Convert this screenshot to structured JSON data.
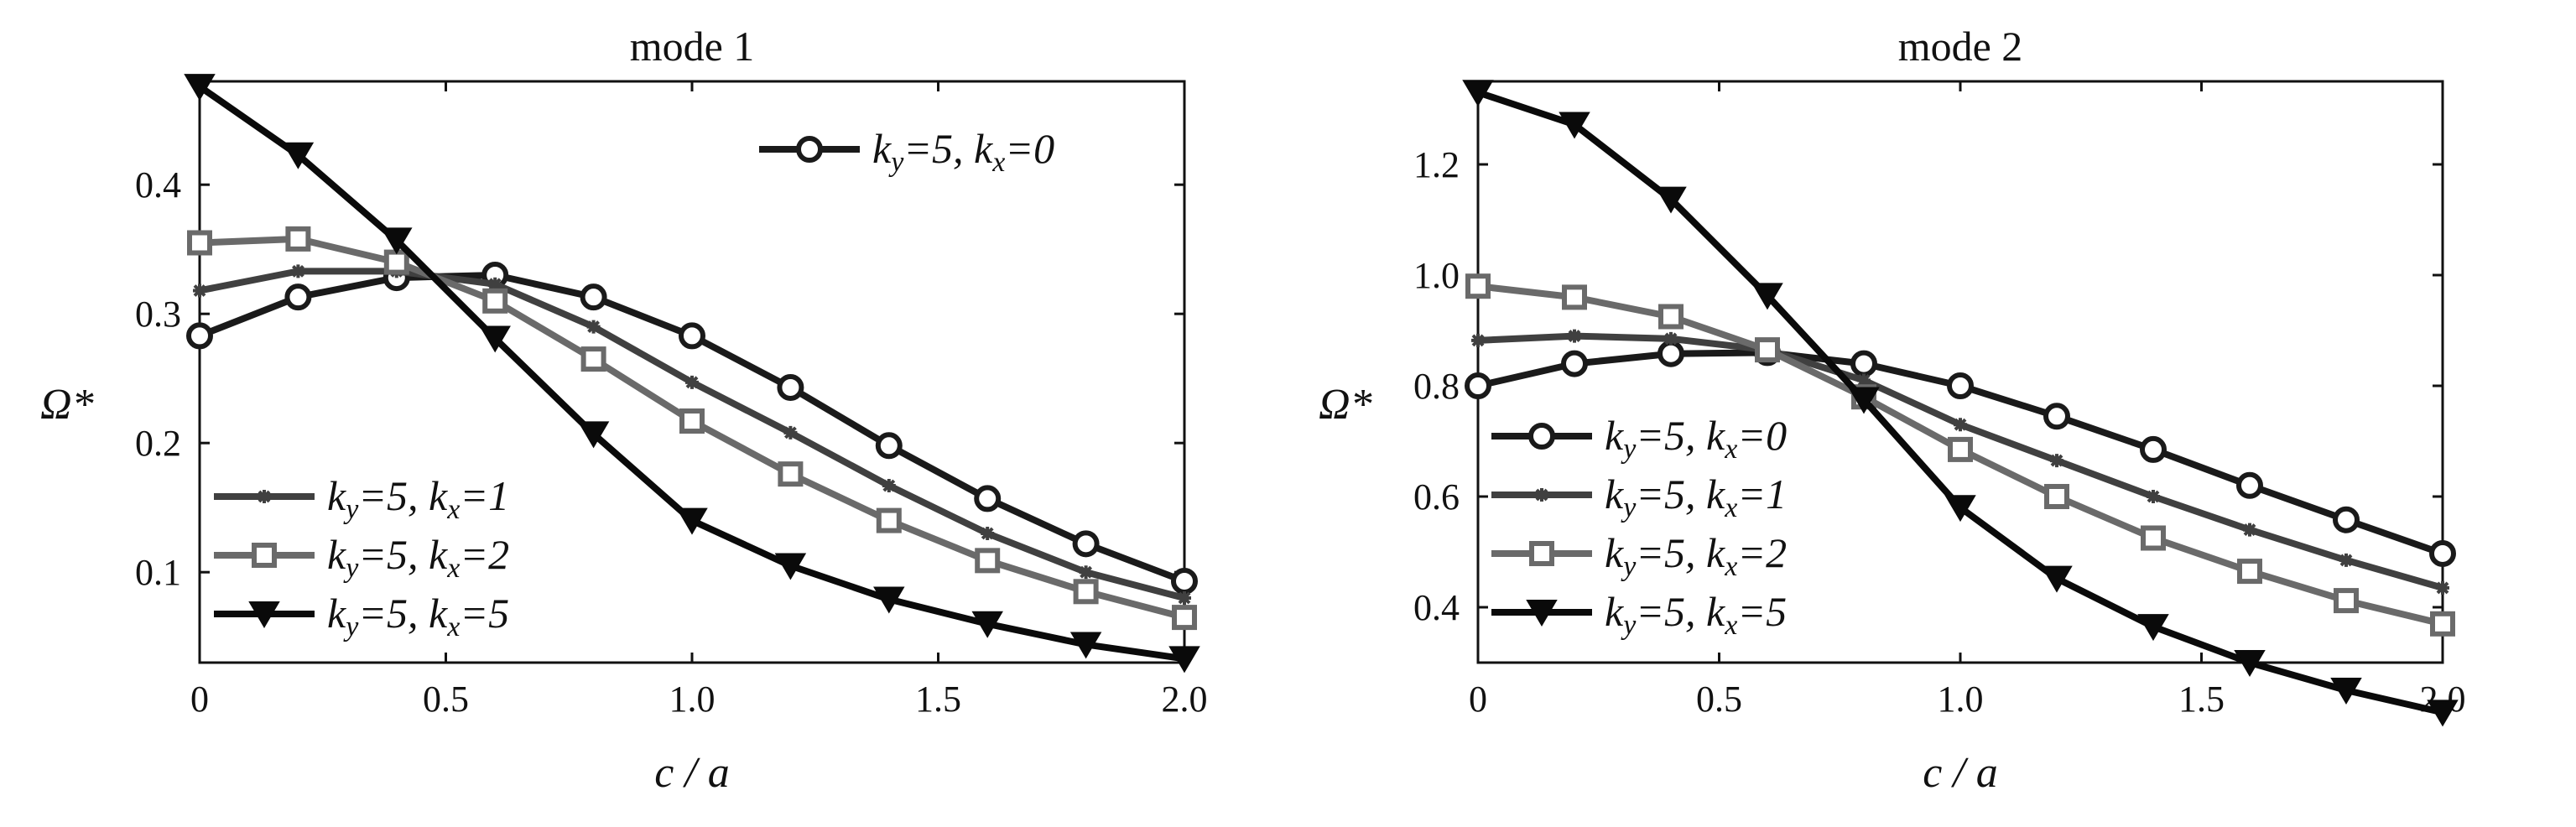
{
  "chart_data": [
    {
      "type": "line",
      "title": "mode 1",
      "xlabel": "c / a",
      "ylabel": "Ω*",
      "xlim": [
        0,
        2.0
      ],
      "ylim": [
        0.03,
        0.48
      ],
      "xticks": [
        0,
        0.5,
        1.0,
        1.5,
        2.0
      ],
      "xtick_labels": [
        "0",
        "0.5",
        "1.0",
        "1.5",
        "2.0"
      ],
      "yticks": [
        0.1,
        0.2,
        0.3,
        0.4
      ],
      "ytick_labels": [
        "0.1",
        "0.2",
        "0.3",
        "0.4"
      ],
      "grid": false,
      "legend": [
        "top-right",
        "bottom-left"
      ],
      "x": [
        0,
        0.2,
        0.4,
        0.6,
        0.8,
        1.0,
        1.2,
        1.4,
        1.6,
        1.8,
        2.0
      ],
      "series": [
        {
          "name": "ky=5, kx=0",
          "legend_ky": "k",
          "legend_ky_sub": "y",
          "legend_ky_val": "=5, ",
          "legend_kx": "k",
          "legend_kx_sub": "x",
          "legend_kx_val": "=0",
          "legend_group": 0,
          "color": "#1a1a1a",
          "marker": "circle",
          "values": [
            0.283,
            0.313,
            0.328,
            0.33,
            0.313,
            0.283,
            0.243,
            0.198,
            0.157,
            0.122,
            0.093
          ]
        },
        {
          "name": "ky=5, kx=1",
          "legend_ky": "k",
          "legend_ky_sub": "y",
          "legend_ky_val": "=5, ",
          "legend_kx": "k",
          "legend_kx_sub": "x",
          "legend_kx_val": "=1",
          "legend_group": 1,
          "color": "#404040",
          "marker": "star",
          "values": [
            0.318,
            0.333,
            0.333,
            0.323,
            0.29,
            0.247,
            0.208,
            0.167,
            0.13,
            0.1,
            0.08
          ]
        },
        {
          "name": "ky=5, kx=2",
          "legend_ky": "k",
          "legend_ky_sub": "y",
          "legend_ky_val": "=5, ",
          "legend_kx": "k",
          "legend_kx_sub": "x",
          "legend_kx_val": "=2",
          "legend_group": 1,
          "color": "#6a6a6a",
          "marker": "square",
          "values": [
            0.355,
            0.358,
            0.34,
            0.31,
            0.265,
            0.217,
            0.176,
            0.14,
            0.109,
            0.085,
            0.065
          ]
        },
        {
          "name": "ky=5, kx=5",
          "legend_ky": "k",
          "legend_ky_sub": "y",
          "legend_ky_val": "=5, ",
          "legend_kx": "k",
          "legend_kx_sub": "x",
          "legend_kx_val": "=5",
          "legend_group": 1,
          "color": "#0a0a0a",
          "marker": "triangle-down",
          "values": [
            0.476,
            0.423,
            0.357,
            0.281,
            0.207,
            0.14,
            0.105,
            0.079,
            0.06,
            0.044,
            0.033
          ]
        }
      ]
    },
    {
      "type": "line",
      "title": "mode 2",
      "xlabel": "c / a",
      "ylabel": "Ω*",
      "xlim": [
        0,
        2.0
      ],
      "ylim": [
        0.3,
        1.35
      ],
      "xticks": [
        0,
        0.5,
        1.0,
        1.5,
        2.0
      ],
      "xtick_labels": [
        "0",
        "0.5",
        "1.0",
        "1.5",
        "2.0"
      ],
      "yticks": [
        0.4,
        0.6,
        0.8,
        1.0,
        1.2
      ],
      "ytick_labels": [
        "0.4",
        "0.6",
        "0.8",
        "1.0",
        "1.2"
      ],
      "grid": false,
      "legend": [
        "bottom-left"
      ],
      "x": [
        0,
        0.2,
        0.4,
        0.6,
        0.8,
        1.0,
        1.2,
        1.4,
        1.6,
        1.8,
        2.0
      ],
      "series": [
        {
          "name": "ky=5, kx=0",
          "legend_ky": "k",
          "legend_ky_sub": "y",
          "legend_ky_val": "=5, ",
          "legend_kx": "k",
          "legend_kx_sub": "x",
          "legend_kx_val": "=0",
          "legend_group": 0,
          "color": "#1a1a1a",
          "marker": "circle",
          "values": [
            0.8,
            0.84,
            0.858,
            0.86,
            0.84,
            0.8,
            0.745,
            0.685,
            0.62,
            0.558,
            0.497
          ]
        },
        {
          "name": "ky=5, kx=1",
          "legend_ky": "k",
          "legend_ky_sub": "y",
          "legend_ky_val": "=5, ",
          "legend_kx": "k",
          "legend_kx_sub": "x",
          "legend_kx_val": "=1",
          "legend_group": 0,
          "color": "#404040",
          "marker": "star",
          "values": [
            0.882,
            0.89,
            0.885,
            0.865,
            0.81,
            0.73,
            0.665,
            0.6,
            0.54,
            0.485,
            0.435
          ]
        },
        {
          "name": "ky=5, kx=2",
          "legend_ky": "k",
          "legend_ky_sub": "y",
          "legend_ky_val": "=5, ",
          "legend_kx": "k",
          "legend_kx_sub": "x",
          "legend_kx_val": "=2",
          "legend_group": 0,
          "color": "#6a6a6a",
          "marker": "square",
          "values": [
            0.98,
            0.96,
            0.925,
            0.865,
            0.78,
            0.685,
            0.6,
            0.525,
            0.465,
            0.412,
            0.37
          ]
        },
        {
          "name": "ky=5, kx=5",
          "legend_ky": "k",
          "legend_ky_sub": "y",
          "legend_ky_val": "=5, ",
          "legend_kx": "k",
          "legend_kx_sub": "x",
          "legend_kx_val": "=5",
          "legend_group": 0,
          "color": "#0a0a0a",
          "marker": "triangle-down",
          "values": [
            1.33,
            1.272,
            1.137,
            0.963,
            0.775,
            0.58,
            0.452,
            0.365,
            0.3,
            0.25,
            0.21
          ]
        }
      ]
    }
  ]
}
